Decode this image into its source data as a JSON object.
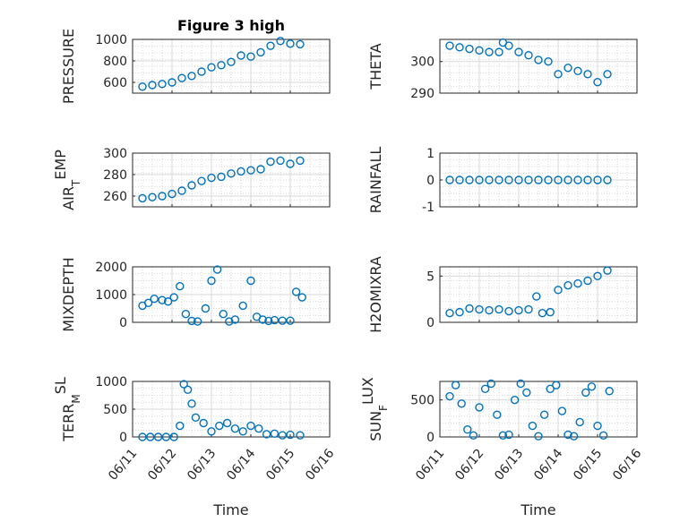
{
  "colors": {
    "marker": "#0072BD",
    "text": "#262626",
    "grid": "#d9d9d9"
  },
  "chart_data": [
    {
      "id": "pressure",
      "type": "scatter",
      "title": "Figure 3 high",
      "ylabel": "PRESSURE",
      "ylabel_sub": "",
      "ylim": [
        500,
        1000
      ],
      "yticks": [
        "600",
        "800",
        "1000"
      ],
      "xlim": [
        "06/11",
        "06/16"
      ],
      "xticks": [
        "06/11",
        "06/12",
        "06/13",
        "06/14",
        "06/15",
        "06/16"
      ],
      "show_xticklabels": false,
      "xlabel": "",
      "grid": "on",
      "x": [
        0.25,
        0.5,
        0.75,
        1.0,
        1.25,
        1.5,
        1.75,
        2.0,
        2.25,
        2.5,
        2.75,
        3.0,
        3.25,
        3.5,
        3.75,
        4.0,
        4.25
      ],
      "y": [
        560,
        575,
        585,
        600,
        640,
        660,
        700,
        740,
        760,
        790,
        850,
        840,
        880,
        940,
        985,
        960,
        955
      ]
    },
    {
      "id": "theta",
      "type": "scatter",
      "title": "",
      "ylabel": "THETA",
      "ylabel_sub": "",
      "ylim": [
        290,
        307
      ],
      "yticks": [
        "290",
        "300"
      ],
      "xlim": [
        "06/11",
        "06/16"
      ],
      "xticks": [
        "06/11",
        "06/12",
        "06/13",
        "06/14",
        "06/15",
        "06/16"
      ],
      "show_xticklabels": false,
      "xlabel": "",
      "grid": "on",
      "x": [
        0.25,
        0.5,
        0.75,
        1.0,
        1.25,
        1.5,
        1.6,
        1.75,
        2.0,
        2.25,
        2.5,
        2.75,
        3.0,
        3.25,
        3.5,
        3.75,
        4.0,
        4.25
      ],
      "y": [
        305,
        304.5,
        304,
        303.5,
        303,
        303,
        306,
        305,
        303,
        302,
        300.5,
        300,
        296,
        298,
        297,
        296,
        293.5,
        296
      ]
    },
    {
      "id": "air_temp",
      "type": "scatter",
      "title": "",
      "ylabel": "AIR",
      "ylabel_sub": "T",
      "ylabel_tail": "EMP",
      "ylim": [
        250,
        300
      ],
      "yticks": [
        "260",
        "280",
        "300"
      ],
      "xlim": [
        "06/11",
        "06/16"
      ],
      "xticks": [
        "06/11",
        "06/12",
        "06/13",
        "06/14",
        "06/15",
        "06/16"
      ],
      "show_xticklabels": false,
      "xlabel": "",
      "grid": "on",
      "x": [
        0.25,
        0.5,
        0.75,
        1.0,
        1.25,
        1.5,
        1.75,
        2.0,
        2.25,
        2.5,
        2.75,
        3.0,
        3.25,
        3.5,
        3.75,
        4.0,
        4.25
      ],
      "y": [
        258,
        259,
        260,
        262,
        265,
        270,
        274,
        277,
        278,
        281,
        283,
        284,
        285,
        292,
        293,
        290,
        293
      ]
    },
    {
      "id": "rainfall",
      "type": "scatter",
      "title": "",
      "ylabel": "RAINFALL",
      "ylabel_sub": "",
      "ylim": [
        -1,
        1
      ],
      "yticks": [
        "-1",
        "0",
        "1"
      ],
      "xlim": [
        "06/11",
        "06/16"
      ],
      "xticks": [
        "06/11",
        "06/12",
        "06/13",
        "06/14",
        "06/15",
        "06/16"
      ],
      "show_xticklabels": false,
      "xlabel": "",
      "grid": "on",
      "x": [
        0.25,
        0.5,
        0.75,
        1.0,
        1.25,
        1.5,
        1.75,
        2.0,
        2.25,
        2.5,
        2.75,
        3.0,
        3.25,
        3.5,
        3.75,
        4.0,
        4.25
      ],
      "y": [
        0,
        0,
        0,
        0,
        0,
        0,
        0,
        0,
        0,
        0,
        0,
        0,
        0,
        0,
        0,
        0,
        0
      ]
    },
    {
      "id": "mixdepth",
      "type": "scatter",
      "title": "",
      "ylabel": "MIXDEPTH",
      "ylabel_sub": "",
      "ylim": [
        0,
        2000
      ],
      "yticks": [
        "0",
        "1000",
        "2000"
      ],
      "xlim": [
        "06/11",
        "06/16"
      ],
      "xticks": [
        "06/11",
        "06/12",
        "06/13",
        "06/14",
        "06/15",
        "06/16"
      ],
      "show_xticklabels": false,
      "xlabel": "",
      "grid": "on",
      "x": [
        0.25,
        0.4,
        0.55,
        0.75,
        0.9,
        1.05,
        1.2,
        1.35,
        1.5,
        1.65,
        1.85,
        2.0,
        2.15,
        2.3,
        2.45,
        2.6,
        2.8,
        3.0,
        3.15,
        3.3,
        3.45,
        3.6,
        3.8,
        4.0,
        4.15,
        4.3
      ],
      "y": [
        600,
        700,
        850,
        800,
        750,
        900,
        1300,
        300,
        50,
        30,
        500,
        1500,
        1900,
        300,
        30,
        100,
        600,
        1500,
        200,
        100,
        50,
        80,
        60,
        60,
        1100,
        900
      ]
    },
    {
      "id": "h2omixra",
      "type": "scatter",
      "title": "",
      "ylabel": "H2OMIXRA",
      "ylabel_sub": "",
      "ylim": [
        0,
        6
      ],
      "yticks": [
        "0",
        "5"
      ],
      "xlim": [
        "06/11",
        "06/16"
      ],
      "xticks": [
        "06/11",
        "06/12",
        "06/13",
        "06/14",
        "06/15",
        "06/16"
      ],
      "show_xticklabels": false,
      "xlabel": "",
      "grid": "on",
      "x": [
        0.25,
        0.5,
        0.75,
        1.0,
        1.25,
        1.5,
        1.75,
        2.0,
        2.25,
        2.45,
        2.6,
        2.8,
        3.0,
        3.25,
        3.5,
        3.75,
        4.0,
        4.25
      ],
      "y": [
        1.0,
        1.1,
        1.5,
        1.4,
        1.3,
        1.4,
        1.2,
        1.3,
        1.4,
        2.8,
        1.0,
        1.1,
        3.5,
        4.0,
        4.2,
        4.5,
        5.0,
        5.6
      ]
    },
    {
      "id": "terr_msl",
      "type": "scatter",
      "title": "",
      "ylabel": "TERR",
      "ylabel_sub": "M",
      "ylabel_tail": "SL",
      "ylim": [
        0,
        1000
      ],
      "yticks": [
        "0",
        "500",
        "1000"
      ],
      "xlim": [
        "06/11",
        "06/16"
      ],
      "xticks": [
        "06/11",
        "06/12",
        "06/13",
        "06/14",
        "06/15",
        "06/16"
      ],
      "show_xticklabels": true,
      "xlabel": "Time",
      "grid": "on",
      "x": [
        0.25,
        0.45,
        0.65,
        0.85,
        1.05,
        1.2,
        1.3,
        1.4,
        1.5,
        1.6,
        1.8,
        2.0,
        2.2,
        2.4,
        2.6,
        2.8,
        3.0,
        3.2,
        3.4,
        3.6,
        3.8,
        4.0,
        4.25
      ],
      "y": [
        0,
        0,
        0,
        0,
        0,
        200,
        950,
        850,
        600,
        350,
        250,
        100,
        200,
        250,
        150,
        100,
        200,
        150,
        50,
        60,
        30,
        40,
        30
      ]
    },
    {
      "id": "sun_flux",
      "type": "scatter",
      "title": "",
      "ylabel": "SUN",
      "ylabel_sub": "F",
      "ylabel_tail": "LUX",
      "ylim": [
        0,
        750
      ],
      "yticks": [
        "0",
        "500"
      ],
      "xlim": [
        "06/11",
        "06/16"
      ],
      "xticks": [
        "06/11",
        "06/12",
        "06/13",
        "06/14",
        "06/15",
        "06/16"
      ],
      "show_xticklabels": true,
      "xlabel": "Time",
      "grid": "on",
      "x": [
        0.25,
        0.4,
        0.55,
        0.7,
        0.85,
        1.0,
        1.15,
        1.3,
        1.45,
        1.6,
        1.75,
        1.9,
        2.05,
        2.2,
        2.35,
        2.5,
        2.65,
        2.8,
        2.95,
        3.1,
        3.25,
        3.4,
        3.55,
        3.7,
        3.85,
        4.0,
        4.15,
        4.3
      ],
      "y": [
        550,
        700,
        450,
        100,
        20,
        400,
        650,
        720,
        300,
        20,
        30,
        500,
        720,
        600,
        150,
        10,
        300,
        650,
        700,
        350,
        30,
        10,
        200,
        600,
        680,
        150,
        20,
        620
      ]
    }
  ]
}
